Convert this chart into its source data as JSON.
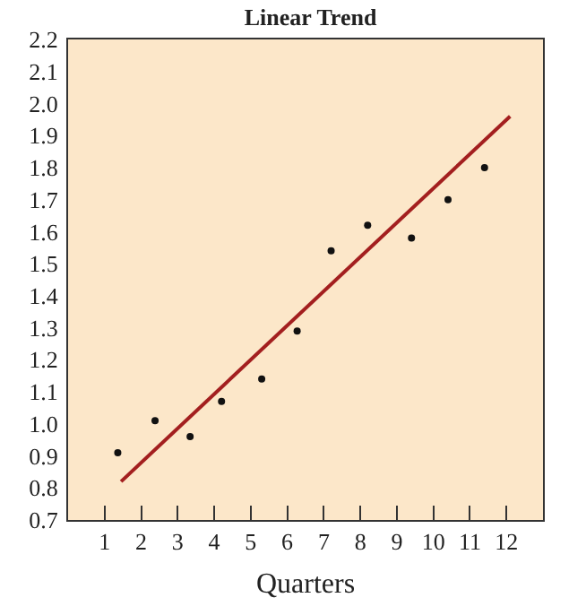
{
  "chart_data": {
    "type": "scatter",
    "title": "Linear Trend",
    "xlabel": "Quarters",
    "series": [
      {
        "marker": "circle",
        "color": "#111111",
        "x": [
          1.36,
          2.38,
          3.34,
          4.2,
          5.3,
          6.27,
          7.2,
          8.2,
          9.4,
          10.4,
          11.4
        ],
        "values": [
          0.91,
          1.01,
          0.96,
          1.07,
          1.14,
          1.29,
          1.54,
          1.62,
          1.58,
          1.7,
          1.8
        ]
      },
      {
        "type": "line",
        "color": "#a31f1f",
        "x": [
          1.45,
          12.1
        ],
        "values": [
          0.82,
          1.96
        ]
      }
    ],
    "xlim": [
      0,
      13
    ],
    "xticks": [
      1,
      2,
      3,
      4,
      5,
      6,
      7,
      8,
      9,
      10,
      11,
      12
    ],
    "ylim": [
      0.7,
      2.2
    ],
    "yticks": [
      0.7,
      0.8,
      0.9,
      {
        "value": 1,
        "label": "1.0"
      },
      1.1,
      1.2,
      1.3,
      1.4,
      1.5,
      1.6,
      1.7,
      1.8,
      1.9,
      {
        "value": 2,
        "label": "2.0"
      },
      2.1,
      2.2
    ],
    "grid": false
  }
}
